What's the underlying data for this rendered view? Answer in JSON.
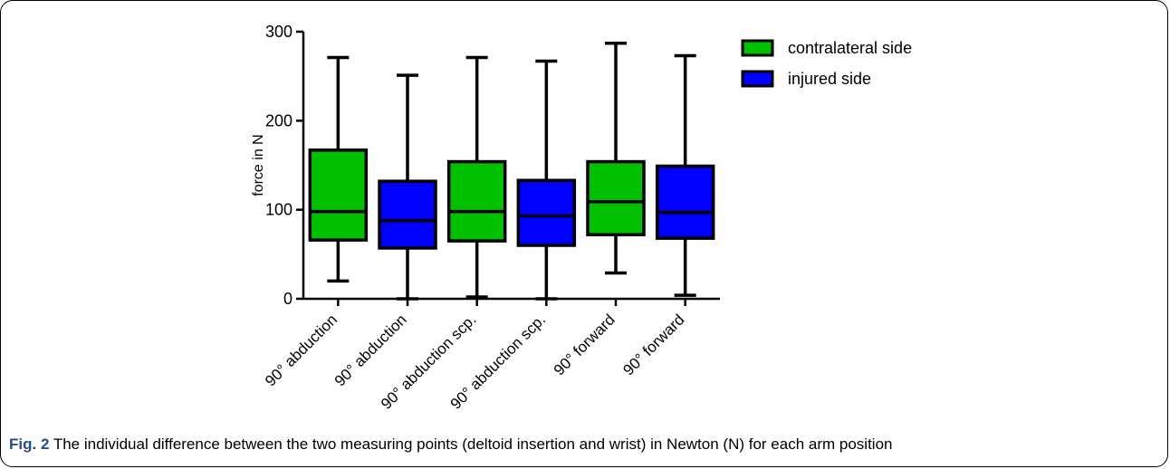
{
  "chart_data": {
    "type": "box",
    "ylabel": "force in N",
    "ylim": [
      0,
      300
    ],
    "yticks": [
      0,
      100,
      200,
      300
    ],
    "categories": [
      "90° abduction",
      "90° abduction",
      "90° abduction scp.",
      "90° abduction scp.",
      "90° forward",
      "90° forward"
    ],
    "boxes": [
      {
        "series": "contralateral side",
        "min": 20,
        "q1": 66,
        "median": 98,
        "q3": 167,
        "max": 271
      },
      {
        "series": "injured side",
        "min": 0,
        "q1": 57,
        "median": 88,
        "q3": 132,
        "max": 251
      },
      {
        "series": "contralateral side",
        "min": 2,
        "q1": 65,
        "median": 98,
        "q3": 154,
        "max": 271
      },
      {
        "series": "injured side",
        "min": 0,
        "q1": 60,
        "median": 93,
        "q3": 133,
        "max": 267
      },
      {
        "series": "contralateral side",
        "min": 29,
        "q1": 72,
        "median": 109,
        "q3": 154,
        "max": 287
      },
      {
        "series": "injured side",
        "min": 4,
        "q1": 68,
        "median": 97,
        "q3": 149,
        "max": 273
      }
    ],
    "legend": [
      {
        "name": "contralateral side",
        "color": "#00c000"
      },
      {
        "name": "injured side",
        "color": "#0000ff"
      }
    ],
    "legend_position": "top-right"
  },
  "caption": {
    "label": "Fig. 2",
    "text": " The individual difference between the two measuring points (deltoid insertion and wrist) in Newton (N) for each arm position"
  }
}
